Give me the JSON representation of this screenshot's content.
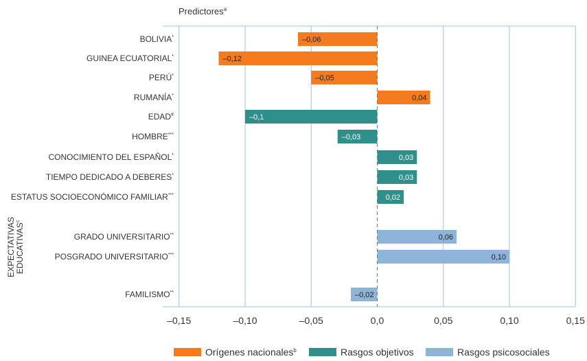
{
  "chart_data": {
    "type": "bar",
    "orientation": "horizontal",
    "title": "Predictores",
    "title_sup": "a",
    "xlim": [
      -0.15,
      0.15
    ],
    "x_ticks": [
      "–0,15",
      "–0,10",
      "–0,05",
      "0,0",
      "0,05",
      "0,10",
      "0,15"
    ],
    "x_tick_values": [
      -0.15,
      -0.1,
      -0.05,
      0.0,
      0.05,
      0.1,
      0.15
    ],
    "grid": "vertical",
    "legend_position": "bottom",
    "group_label": [
      "EXPECTATIVAS",
      "EDUCATIVAS"
    ],
    "group_label_sup": "c",
    "bars": [
      {
        "label": "BOLIVIA",
        "sup": "*",
        "value": -0.06,
        "value_label": "–0,06",
        "series": 0
      },
      {
        "label": "GUINEA ECUATORIAL",
        "sup": "*",
        "value": -0.12,
        "value_label": "–0,12",
        "series": 0
      },
      {
        "label": "PERÚ",
        "sup": "*",
        "value": -0.05,
        "value_label": "–0,05",
        "series": 0
      },
      {
        "label": "RUMANÍA",
        "sup": "*",
        "value": 0.04,
        "value_label": "0,04",
        "series": 0
      },
      {
        "label": "EDAD",
        "sup": "#",
        "value": -0.1,
        "value_label": "–0,1",
        "series": 1
      },
      {
        "label": "HOMBRE",
        "sup": "***",
        "value": -0.03,
        "value_label": "–0,03",
        "series": 1
      },
      {
        "label": "CONOCIMIENTO DEL ESPAÑOL",
        "sup": "*",
        "value": 0.03,
        "value_label": "0,03",
        "series": 1
      },
      {
        "label": "TIEMPO DEDICADO A DEBERES",
        "sup": "*",
        "value": 0.03,
        "value_label": "0,03",
        "series": 1
      },
      {
        "label": "ESTATUS SOCIOECONÓMICO FAMILIAR",
        "sup": "***",
        "value": 0.02,
        "value_label": "0,02",
        "series": 1
      },
      {
        "label": "GRADO UNIVERSITARIO",
        "sup": "**",
        "value": 0.06,
        "value_label": "0,06",
        "series": 2
      },
      {
        "label": "POSGRADO UNIVERSITARIO",
        "sup": "***",
        "value": 0.1,
        "value_label": "0,10",
        "series": 2
      },
      {
        "label": "FAMILISMO",
        "sup": "**",
        "value": -0.02,
        "value_label": "–0,02",
        "series": 2
      }
    ],
    "series": [
      {
        "name": "Orígenes nacionales",
        "sup": "b",
        "color": "#f47b20",
        "label_color": "#222222"
      },
      {
        "name": "Rasgos objetivos",
        "sup": "",
        "color": "#2f8f8a",
        "label_color": "#ffffff"
      },
      {
        "name": "Rasgos psicosociales",
        "sup": "",
        "color": "#8eb4da",
        "label_color": "#222222"
      }
    ],
    "colors": {
      "grid": "#9cc4db",
      "zero_line": "#5a7fa0",
      "frame": "#9cc4db"
    }
  }
}
